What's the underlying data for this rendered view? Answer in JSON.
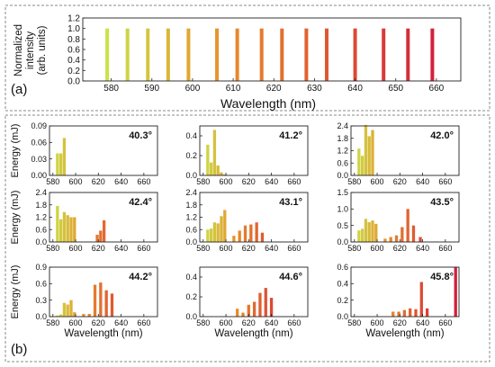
{
  "top_panel": {
    "label": "(a)",
    "xlabel": "Wavelength (nm)",
    "ylabel_line1": "Normalized",
    "ylabel_line2": "intensity",
    "ylabel_line3": "(arb. units)"
  },
  "bottom_panel": {
    "label": "(b)",
    "xlabel": "Wavelength (nm)",
    "ylabel": "Energy (mJ)"
  },
  "colors": {
    "low": "#c9e24a",
    "mid": "#e8902a",
    "high": "#d41e3c",
    "frame": "#888888"
  },
  "chart_data": [
    {
      "type": "bar",
      "title": "",
      "xlabel": "Wavelength (nm)",
      "ylabel": "Normalized intensity (arb. units)",
      "xlim": [
        573,
        666
      ],
      "ylim": [
        0,
        1.2
      ],
      "xticks": [
        580,
        590,
        600,
        610,
        620,
        630,
        640,
        650,
        660
      ],
      "yticks": [
        "0.0",
        "0.2",
        "0.4",
        "0.6",
        "0.8",
        "1.0",
        "1.2"
      ],
      "x": [
        579,
        584,
        589,
        594,
        599,
        606,
        611,
        617,
        622,
        628,
        633,
        640,
        647,
        653,
        659
      ],
      "values": [
        1,
        1,
        1,
        1,
        1,
        1,
        1,
        1,
        1,
        1,
        1,
        1,
        1,
        1,
        1
      ]
    },
    {
      "type": "bar",
      "annotation": "40.3°",
      "xlim": [
        577,
        672
      ],
      "ylim": [
        0,
        0.09
      ],
      "yticks": [
        "0.00",
        "0.03",
        "0.06",
        "0.09"
      ],
      "xticks": [
        580,
        600,
        620,
        640,
        660
      ],
      "x": [
        584,
        587,
        590
      ],
      "values": [
        0.04,
        0.04,
        0.068
      ]
    },
    {
      "type": "bar",
      "annotation": "41.2°",
      "xlim": [
        577,
        672
      ],
      "ylim": [
        0,
        0.5
      ],
      "yticks": [
        "0.0",
        "0.2",
        "0.4"
      ],
      "xticks": [
        580,
        600,
        620,
        640,
        660
      ],
      "x": [
        584,
        587,
        590,
        593,
        596,
        599
      ],
      "values": [
        0.31,
        0.13,
        0.46,
        0.1,
        0.03,
        0.01
      ]
    },
    {
      "type": "bar",
      "annotation": "42.0°",
      "xlim": [
        577,
        672
      ],
      "ylim": [
        0,
        2.4
      ],
      "yticks": [
        "0.0",
        "0.6",
        "1.2",
        "1.8",
        "2.4"
      ],
      "xticks": [
        580,
        600,
        620,
        640,
        660
      ],
      "x": [
        584,
        587,
        590,
        593,
        596,
        599
      ],
      "values": [
        1.3,
        0.95,
        2.45,
        1.9,
        2.2,
        0
      ]
    },
    {
      "type": "bar",
      "annotation": "42.4°",
      "xlim": [
        577,
        672
      ],
      "ylim": [
        0,
        2.4
      ],
      "yticks": [
        "0.0",
        "0.6",
        "1.2",
        "1.8",
        "2.4"
      ],
      "xticks": [
        580,
        600,
        620,
        640,
        660
      ],
      "x": [
        584,
        587,
        590,
        593,
        596,
        599,
        619,
        622,
        625
      ],
      "values": [
        1.75,
        1.1,
        1.45,
        1.3,
        1.2,
        1.2,
        0.35,
        0.55,
        1.05
      ]
    },
    {
      "type": "bar",
      "annotation": "43.1°",
      "xlim": [
        577,
        672
      ],
      "ylim": [
        0,
        2.4
      ],
      "yticks": [
        "0.0",
        "0.6",
        "1.2",
        "1.8",
        "2.4"
      ],
      "xticks": [
        580,
        600,
        620,
        640,
        660
      ],
      "x": [
        584,
        587,
        590,
        593,
        596,
        599,
        607,
        612,
        617,
        622,
        627,
        632
      ],
      "values": [
        0.6,
        0.65,
        0.95,
        0.9,
        1.25,
        1.55,
        0.3,
        0.55,
        0.8,
        0.85,
        0.95,
        0.45
      ]
    },
    {
      "type": "bar",
      "annotation": "43.5°",
      "xlim": [
        577,
        672
      ],
      "ylim": [
        0,
        1.5
      ],
      "yticks": [
        "0.0",
        "0.5",
        "1.0",
        "1.5"
      ],
      "xticks": [
        580,
        600,
        620,
        640,
        660
      ],
      "x": [
        584,
        587,
        590,
        593,
        596,
        599,
        607,
        612,
        617,
        622,
        627,
        632,
        638
      ],
      "values": [
        0.35,
        0.4,
        0.7,
        0.6,
        0.65,
        0.55,
        0.1,
        0.15,
        0.2,
        0.45,
        1.0,
        0.5,
        0.15
      ]
    },
    {
      "type": "bar",
      "annotation": "44.2°",
      "xlim": [
        577,
        672
      ],
      "ylim": [
        0,
        0.9
      ],
      "yticks": [
        "0.0",
        "0.3",
        "0.6",
        "0.9"
      ],
      "xticks": [
        580,
        600,
        620,
        640,
        660
      ],
      "x": [
        584,
        587,
        590,
        593,
        596,
        599,
        607,
        612,
        617,
        622,
        627,
        632
      ],
      "values": [
        0.02,
        0.04,
        0.25,
        0.22,
        0.3,
        0.08,
        0.05,
        0.05,
        0.58,
        0.62,
        0.48,
        0.42
      ]
    },
    {
      "type": "bar",
      "annotation": "44.6°",
      "xlim": [
        577,
        672
      ],
      "ylim": [
        0,
        0.5
      ],
      "yticks": [
        "0.0",
        "0.2",
        "0.4"
      ],
      "xticks": [
        580,
        600,
        620,
        640,
        660
      ],
      "x": [
        610,
        615,
        620,
        625,
        630,
        635,
        640
      ],
      "values": [
        0.08,
        0.04,
        0.12,
        0.15,
        0.24,
        0.29,
        0.19
      ]
    },
    {
      "type": "bar",
      "annotation": "45.8°",
      "xlim": [
        577,
        672
      ],
      "ylim": [
        0,
        0.6
      ],
      "yticks": [
        "0.0",
        "0.2",
        "0.4",
        "0.6"
      ],
      "xticks": [
        580,
        600,
        620,
        640,
        660
      ],
      "x": [
        614,
        619,
        624,
        629,
        634,
        639,
        644,
        649,
        654,
        659,
        664,
        669
      ],
      "values": [
        0.06,
        0.06,
        0.08,
        0.1,
        0.09,
        0.42,
        0.1,
        0.0,
        0.0,
        0.0,
        0.0,
        0.6
      ]
    }
  ]
}
